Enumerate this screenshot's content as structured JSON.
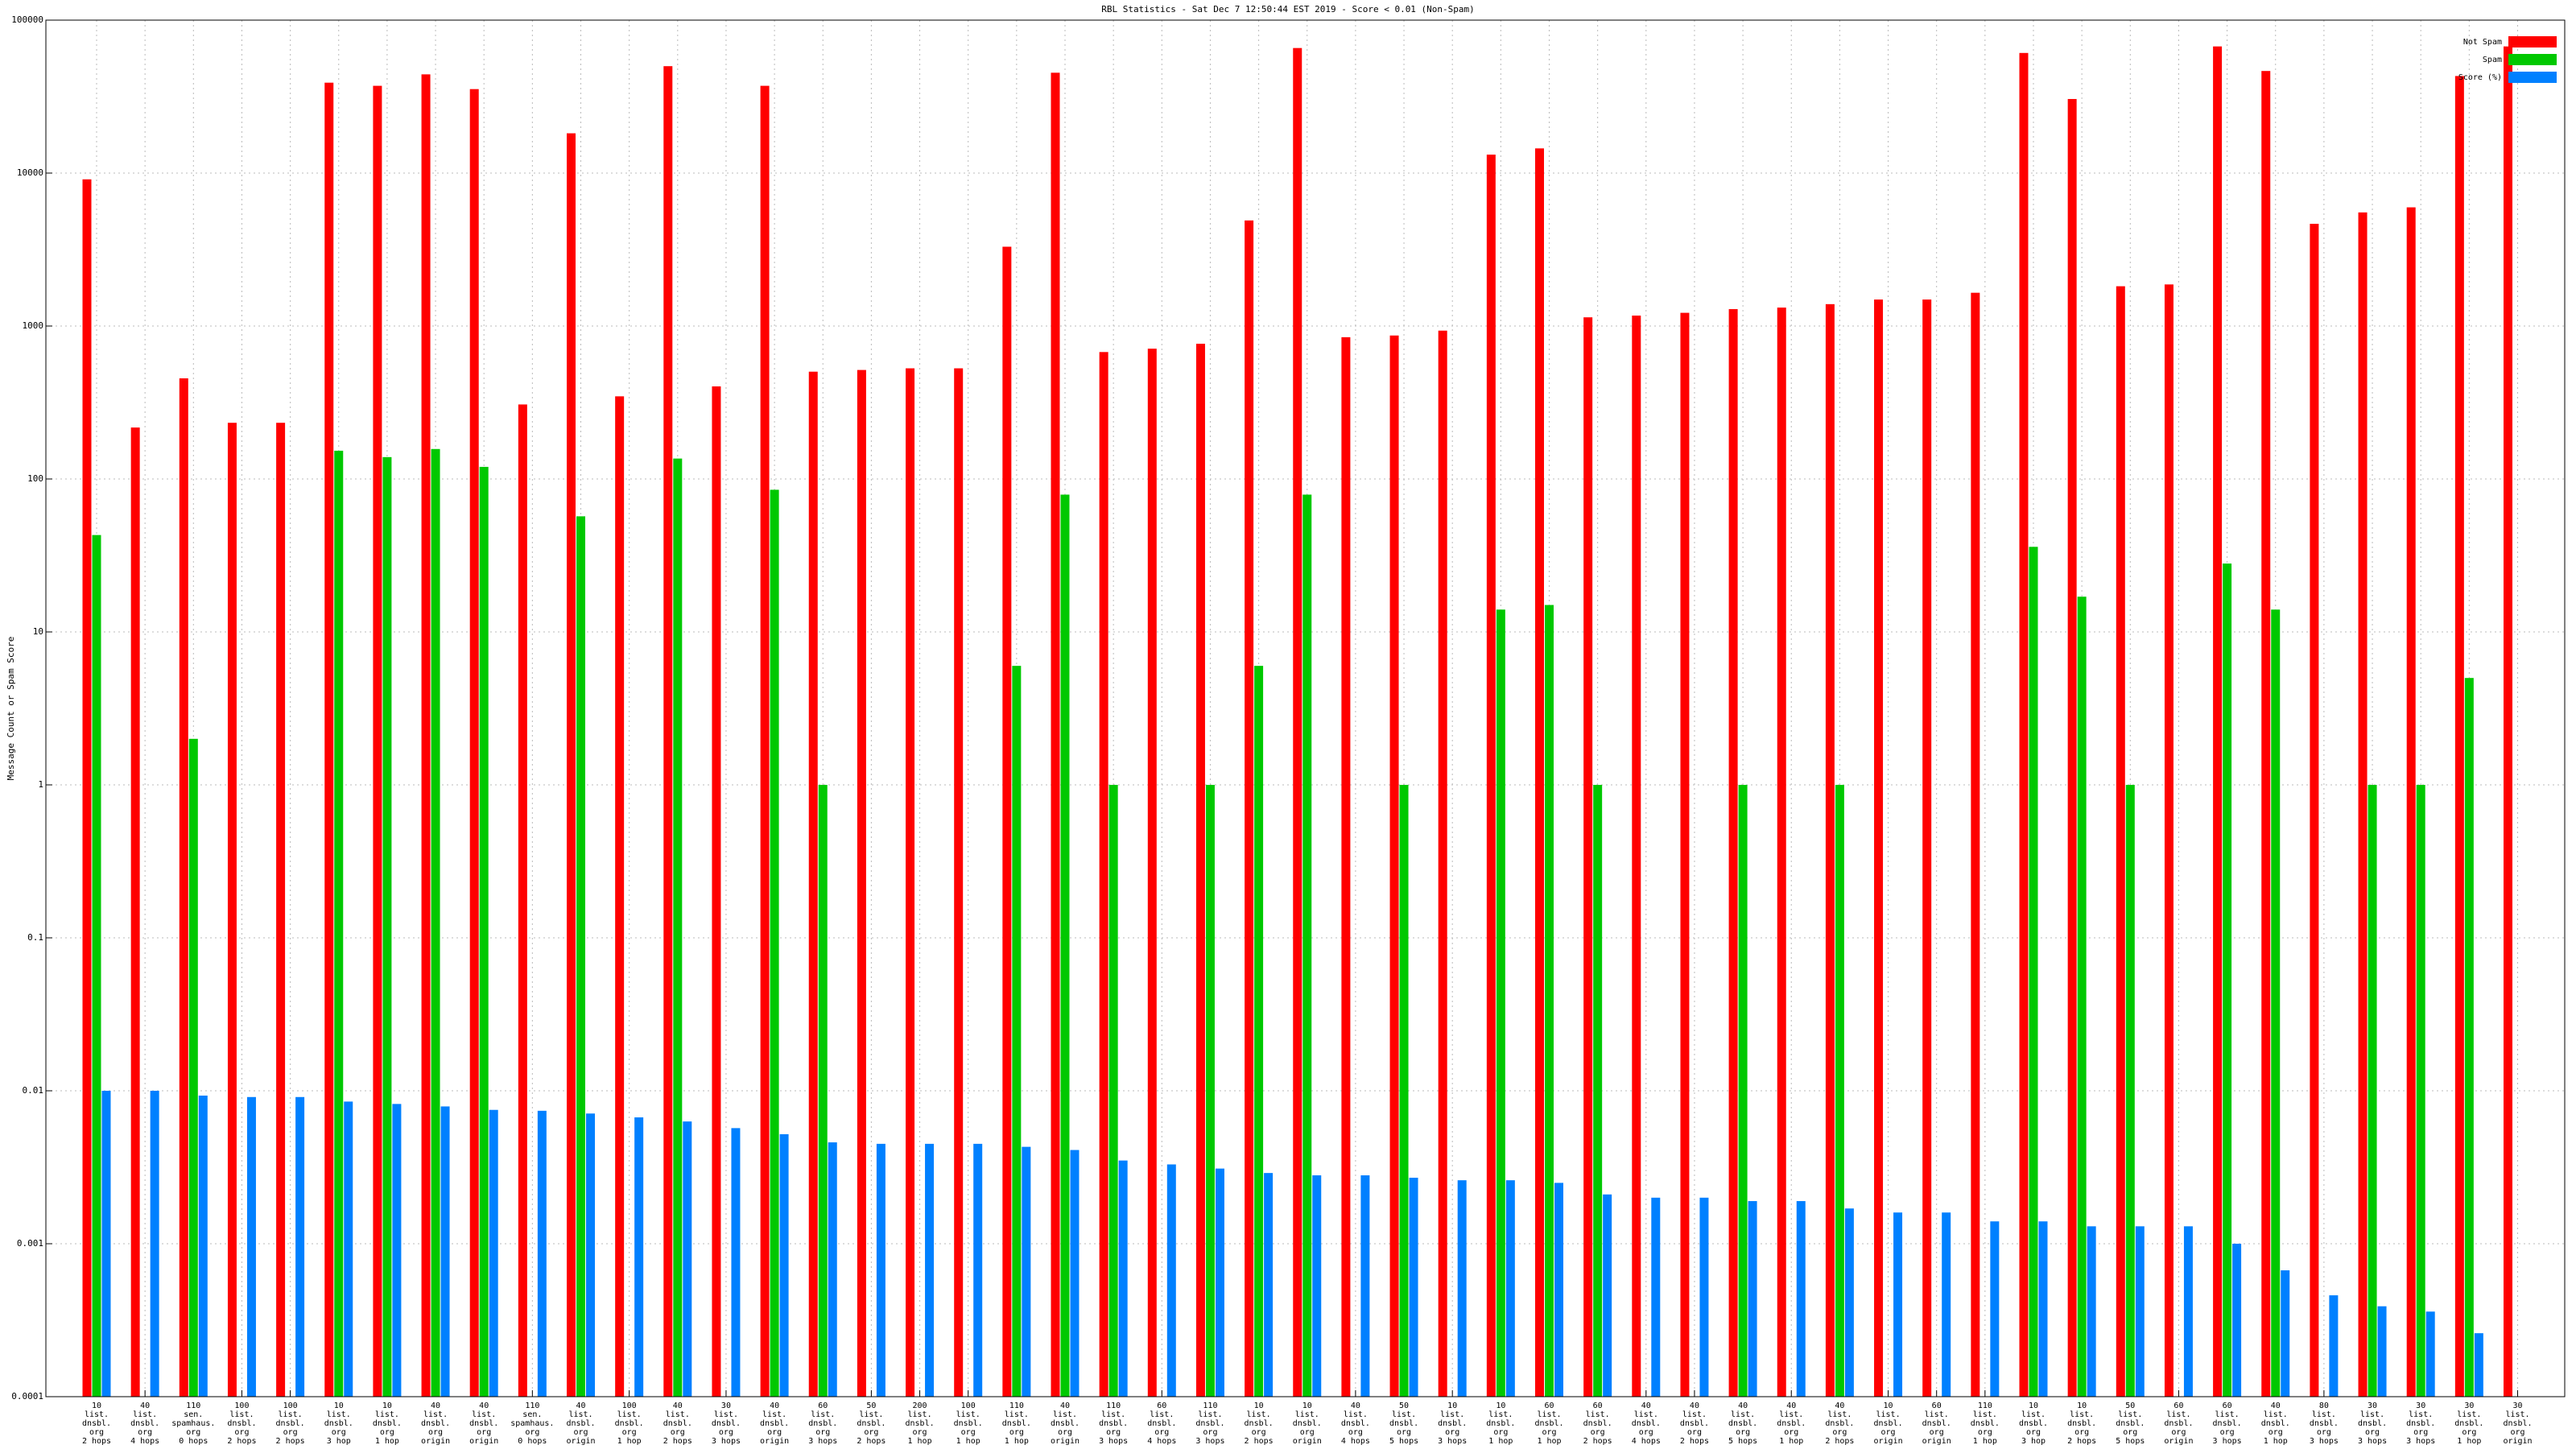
{
  "chart_data": {
    "type": "bar",
    "title": "RBL Statistics - Sat Dec  7 12:50:44 EST 2019 - Score < 0.01 (Non-Spam)",
    "y_label": "Message Count or Spam Score",
    "log_y": true,
    "grid": true,
    "legend_position": "top-right",
    "ylim": [
      0.0001,
      100000
    ],
    "yticks": [
      0.0001,
      0.001,
      0.01,
      0.1,
      1,
      10,
      100,
      1000,
      10000,
      100000
    ],
    "categories": [
      "10\nlist.\ndnsbl.\norg\n2 hops",
      "40\nlist.\ndnsbl.\norg\n4 hops",
      "110\nsen.\nspamhaus.\norg\n0 hops",
      "100\nlist.\ndnsbl.\norg\n2 hops",
      "100\nlist.\ndnsbl.\norg\n2 hops",
      "10\nlist.\ndnsbl.\norg\n3 hop",
      "10\nlist.\ndnsbl.\norg\n1 hop",
      "40\nlist.\ndnsbl.\norg\norigin",
      "40\nlist.\ndnsbl.\norg\norigin",
      "110\nsen.\nspamhaus.\norg\n0 hops",
      "40\nlist.\ndnsbl.\norg\norigin",
      "100\nlist.\ndnsbl.\norg\n1 hop",
      "40\nlist.\ndnsbl.\norg\n2 hops",
      "30\nlist.\ndnsbl.\norg\n3 hops",
      "40\nlist.\ndnsbl.\norg\norigin",
      "60\nlist.\ndnsbl.\norg\n3 hops",
      "50\nlist.\ndnsbl.\norg\n2 hops",
      "200\nlist.\ndnsbl.\norg\n1 hop",
      "100\nlist.\ndnsbl.\norg\n1 hop",
      "110\nlist.\ndnsbl.\norg\n1 hop",
      "40\nlist.\ndnsbl.\norg\norigin",
      "110\nlist.\ndnsbl.\norg\n3 hops",
      "60\nlist.\ndnsbl.\norg\n4 hops",
      "110\nlist.\ndnsbl.\norg\n3 hops",
      "10\nlist.\ndnsbl.\norg\n2 hops",
      "10\nlist.\ndnsbl.\norg\norigin",
      "40\nlist.\ndnsbl.\norg\n4 hops",
      "50\nlist.\ndnsbl.\norg\n5 hops",
      "10\nlist.\ndnsbl.\norg\n3 hops",
      "10\nlist.\ndnsbl.\norg\n1 hop",
      "60\nlist.\ndnsbl.\norg\n1 hop",
      "60\nlist.\ndnsbl.\norg\n2 hops",
      "40\nlist.\ndnsbl.\norg\n4 hops",
      "40\nlist.\ndnsbl.\norg\n2 hops",
      "40\nlist.\ndnsbl.\norg\n5 hops",
      "40\nlist.\ndnsbl.\norg\n1 hop",
      "40\nlist.\ndnsbl.\norg\n2 hops",
      "10\nlist.\ndnsbl.\norg\norigin",
      "60\nlist.\ndnsbl.\norg\norigin",
      "110\nlist.\ndnsbl.\norg\n1 hop",
      "10\nlist.\ndnsbl.\norg\n3 hop",
      "10\nlist.\ndnsbl.\norg\n2 hops",
      "50\nlist.\ndnsbl.\norg\n5 hops",
      "60\nlist.\ndnsbl.\norg\norigin",
      "60\nlist.\ndnsbl.\norg\n3 hops",
      "40\nlist.\ndnsbl.\norg\n1 hop",
      "80\nlist.\ndnsbl.\norg\n3 hops",
      "30\nlist.\ndnsbl.\norg\n3 hops",
      "30\nlist.\ndnsbl.\norg\n3 hops",
      "30\nlist.\ndnsbl.\norg\n1 hop",
      "30\nlist.\ndnsbl.\norg\norigin"
    ],
    "series": [
      {
        "name": "Not Spam",
        "color": "#ff0000",
        "values": [
          9100,
          217,
          455,
          233,
          233,
          39000,
          37200,
          44200,
          35400,
          307,
          18200,
          347,
          50000,
          403,
          37200,
          503,
          516,
          529,
          529,
          3300,
          45300,
          676,
          711,
          766,
          4900,
          65700,
          845,
          867,
          933,
          13200,
          14500,
          1140,
          1170,
          1220,
          1290,
          1320,
          1390,
          1490,
          1490,
          1650,
          61000,
          30500,
          1820,
          1870,
          67300,
          46500,
          4660,
          5530,
          5970,
          43100,
          67300
        ]
      },
      {
        "name": "Spam",
        "color": "#00c800",
        "values": [
          43,
          null,
          2,
          null,
          null,
          153,
          139,
          157,
          120,
          null,
          57,
          null,
          136,
          null,
          85,
          1,
          null,
          null,
          null,
          6,
          79,
          1,
          null,
          1,
          6,
          79,
          null,
          1,
          null,
          14,
          15,
          1,
          null,
          null,
          1,
          null,
          1,
          null,
          null,
          null,
          36,
          17,
          1,
          null,
          28,
          14,
          null,
          1,
          1,
          5,
          null
        ]
      },
      {
        "name": "Score (%)",
        "color": "#0080ff",
        "values": [
          0.01,
          0.01,
          0.0093,
          0.0091,
          0.0091,
          0.0085,
          0.0082,
          0.0079,
          0.0075,
          0.0074,
          0.0071,
          0.0067,
          0.0063,
          0.0057,
          0.0052,
          0.0046,
          0.0045,
          0.0045,
          0.0045,
          0.0043,
          0.0041,
          0.0035,
          0.0033,
          0.0031,
          0.0029,
          0.0028,
          0.0028,
          0.0027,
          0.0026,
          0.0026,
          0.0025,
          0.0021,
          0.002,
          0.002,
          0.0019,
          0.0019,
          0.0017,
          0.0016,
          0.0016,
          0.0014,
          0.0014,
          0.0013,
          0.0013,
          0.0013,
          0.001,
          0.00067,
          0.00046,
          0.00039,
          0.00036,
          0.00026,
          null
        ]
      }
    ]
  }
}
